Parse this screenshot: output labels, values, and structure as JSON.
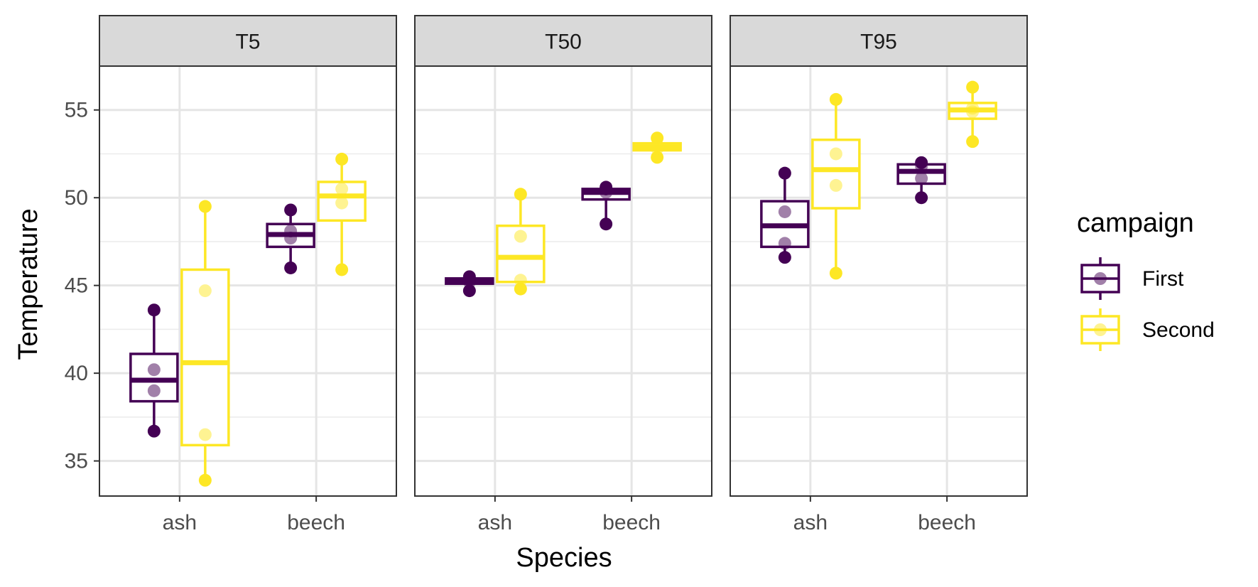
{
  "chart_data": {
    "type": "boxplot",
    "xlabel": "Species",
    "ylabel": "Temperature",
    "ylim": [
      33.0,
      57.5
    ],
    "yticks": [
      35,
      40,
      45,
      50,
      55
    ],
    "categories": [
      "ash",
      "beech"
    ],
    "facets": [
      "T5",
      "T50",
      "T95"
    ],
    "grid": true,
    "legend": {
      "title": "campaign",
      "position": "right",
      "entries": [
        {
          "name": "First",
          "color": "#440154"
        },
        {
          "name": "Second",
          "color": "#fde725"
        }
      ]
    },
    "panels": [
      {
        "facet": "T5",
        "groups": [
          {
            "category": "ash",
            "series": "First",
            "min": 36.7,
            "q1": 38.4,
            "median": 39.6,
            "q3": 41.1,
            "max": 43.6,
            "points": [
              36.7,
              39.0,
              40.2,
              43.6
            ]
          },
          {
            "category": "ash",
            "series": "Second",
            "min": 33.9,
            "q1": 35.9,
            "median": 40.6,
            "q3": 45.9,
            "max": 49.5,
            "points": [
              33.9,
              36.5,
              44.7,
              49.5
            ]
          },
          {
            "category": "beech",
            "series": "First",
            "min": 46.0,
            "q1": 47.2,
            "median": 47.9,
            "q3": 48.5,
            "max": 49.3,
            "points": [
              46.0,
              47.7,
              48.1,
              49.3
            ]
          },
          {
            "category": "beech",
            "series": "Second",
            "min": 45.9,
            "q1": 48.7,
            "median": 50.1,
            "q3": 50.9,
            "max": 52.2,
            "points": [
              45.9,
              49.7,
              50.5,
              52.2
            ]
          }
        ]
      },
      {
        "facet": "T50",
        "groups": [
          {
            "category": "ash",
            "series": "First",
            "min": 44.7,
            "q1": 45.1,
            "median": 45.2,
            "q3": 45.4,
            "max": 45.5,
            "points": [
              44.7,
              45.2,
              45.3,
              45.5
            ]
          },
          {
            "category": "ash",
            "series": "Second",
            "min": 44.8,
            "q1": 45.2,
            "median": 46.6,
            "q3": 48.4,
            "max": 50.2,
            "points": [
              44.8,
              45.3,
              47.8,
              50.2
            ]
          },
          {
            "category": "beech",
            "series": "First",
            "min": 48.5,
            "q1": 49.9,
            "median": 50.3,
            "q3": 50.5,
            "max": 50.6,
            "points": [
              48.5,
              50.3,
              50.5,
              50.6
            ]
          },
          {
            "category": "beech",
            "series": "Second",
            "min": 52.3,
            "q1": 52.7,
            "median": 52.9,
            "q3": 53.1,
            "max": 53.4,
            "points": [
              52.3,
              52.8,
              53.0,
              53.4
            ]
          }
        ]
      },
      {
        "facet": "T95",
        "groups": [
          {
            "category": "ash",
            "series": "First",
            "min": 46.6,
            "q1": 47.2,
            "median": 48.4,
            "q3": 49.8,
            "max": 51.4,
            "points": [
              46.6,
              47.4,
              49.2,
              51.4
            ]
          },
          {
            "category": "ash",
            "series": "Second",
            "min": 45.7,
            "q1": 49.4,
            "median": 51.6,
            "q3": 53.3,
            "max": 55.6,
            "points": [
              45.7,
              50.7,
              52.5,
              55.6
            ]
          },
          {
            "category": "beech",
            "series": "First",
            "min": 50.0,
            "q1": 50.8,
            "median": 51.5,
            "q3": 51.9,
            "max": 52.0,
            "points": [
              50.0,
              51.1,
              51.8,
              52.0
            ]
          },
          {
            "category": "beech",
            "series": "Second",
            "min": 53.2,
            "q1": 54.5,
            "median": 55.0,
            "q3": 55.4,
            "max": 56.3,
            "points": [
              53.2,
              54.9,
              55.1,
              56.3
            ]
          }
        ]
      }
    ]
  }
}
